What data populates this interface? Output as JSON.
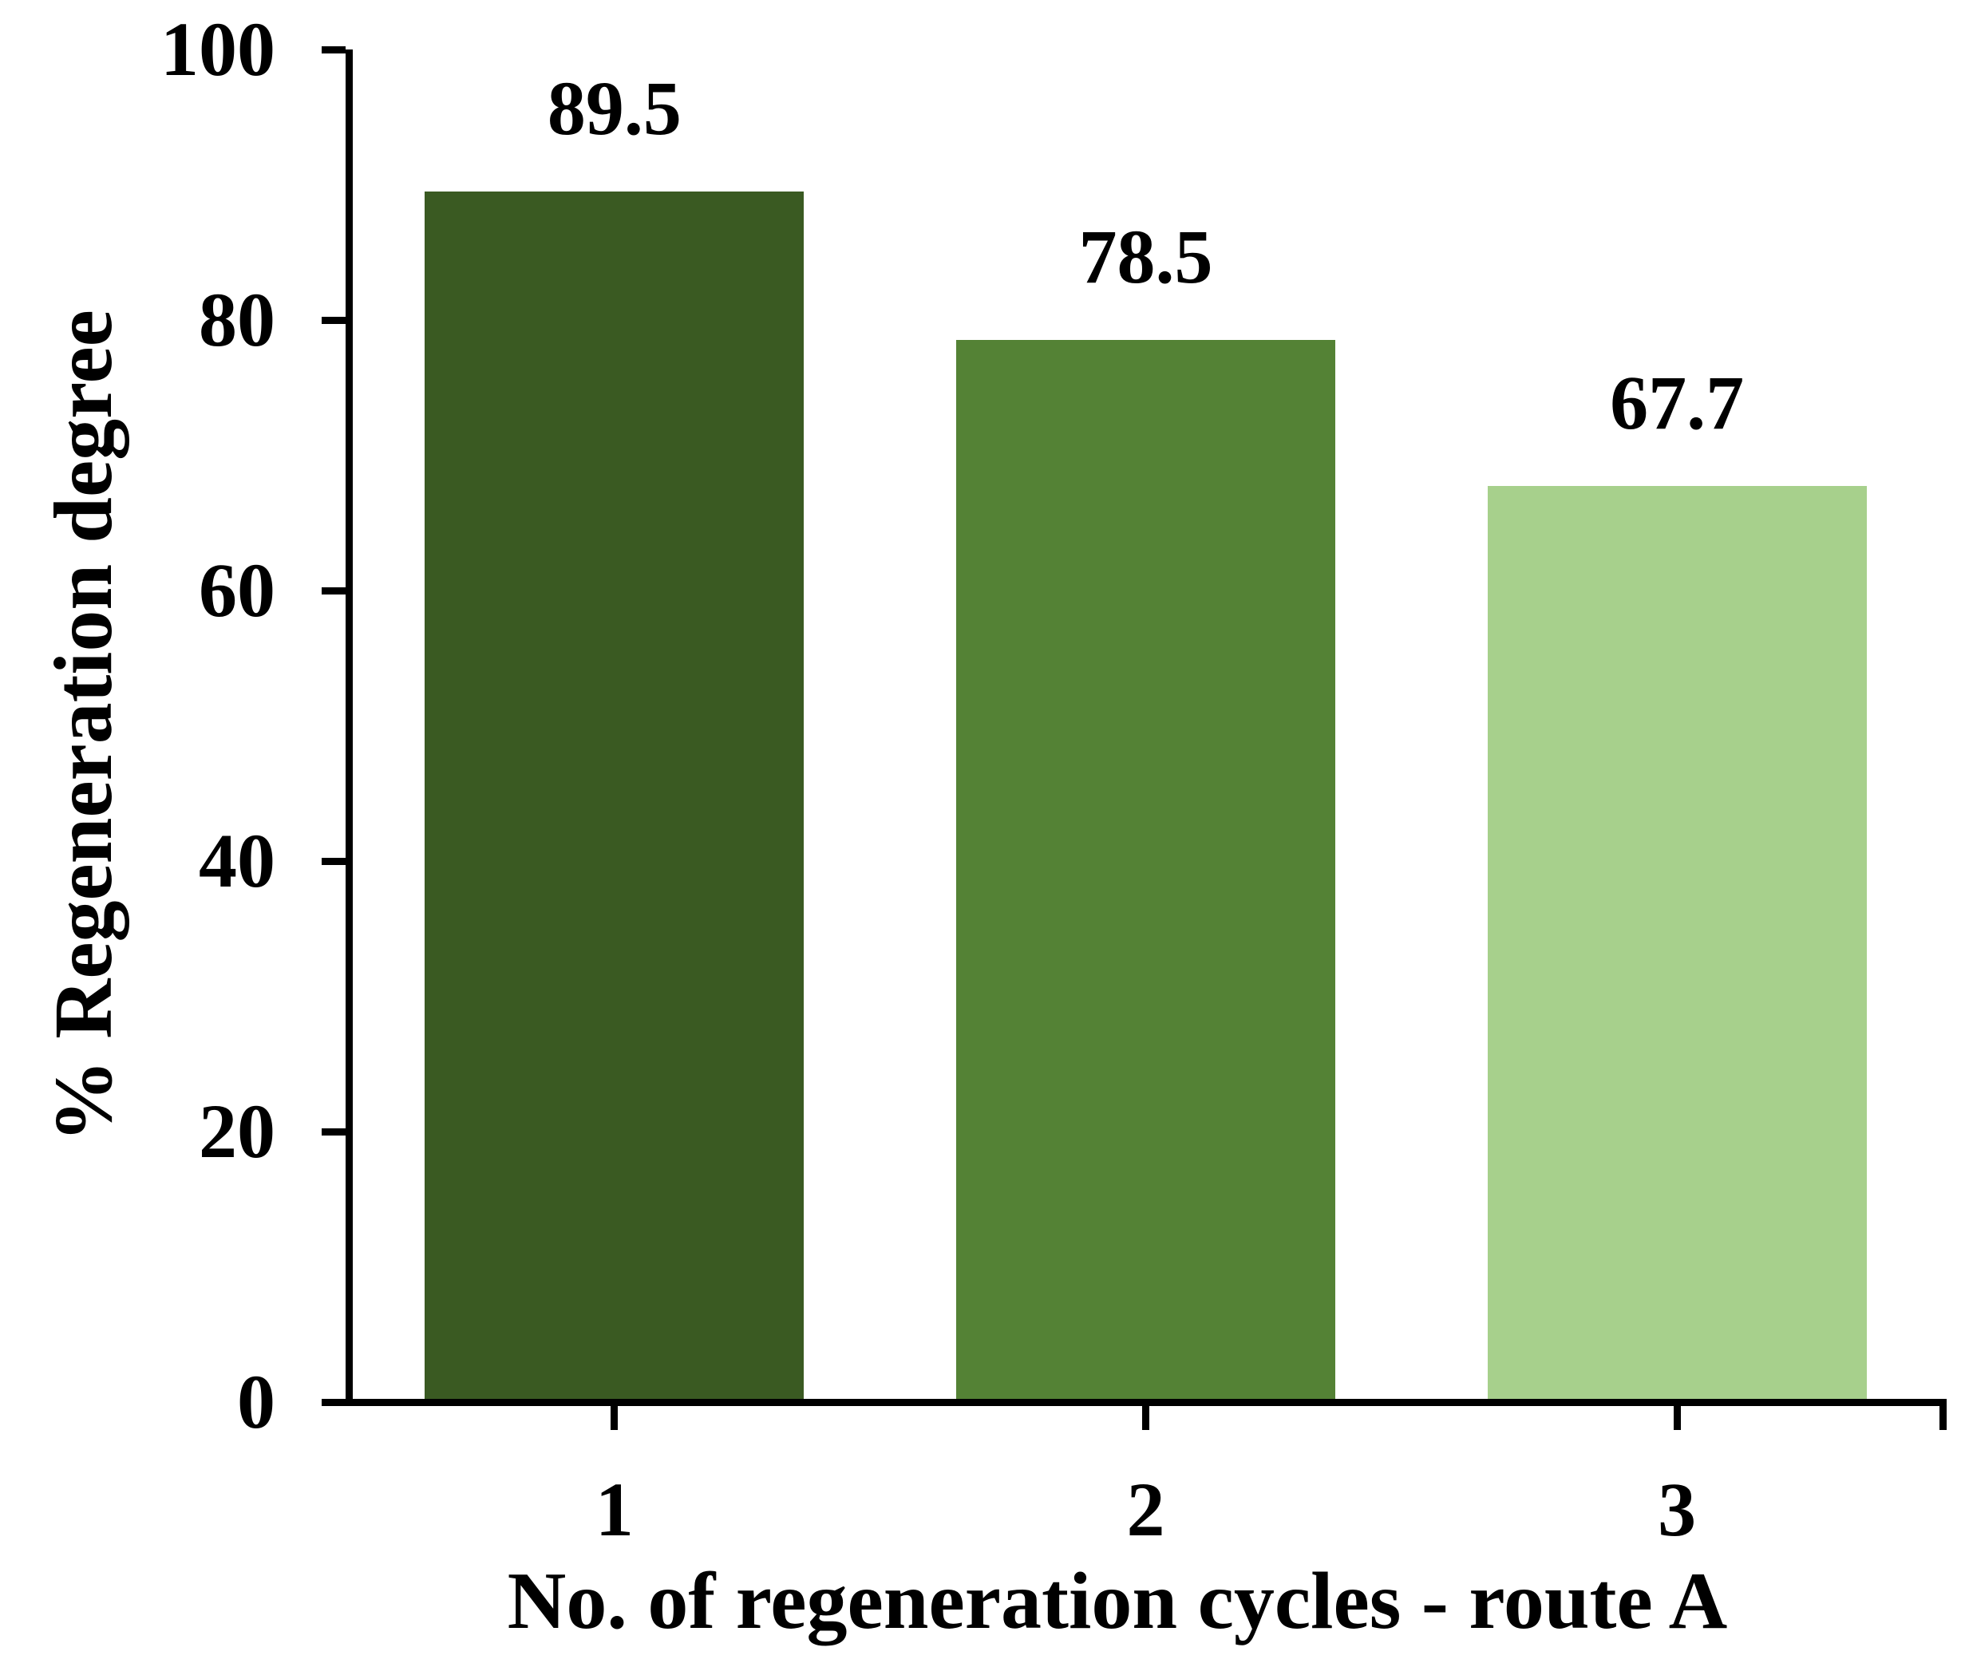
{
  "figure": {
    "background": "#ffffff",
    "axis_color": "#000000",
    "text_color": "#000000"
  },
  "chart_data": {
    "type": "bar",
    "title": "",
    "categories": [
      "1",
      "2",
      "3"
    ],
    "values": [
      89.5,
      78.5,
      67.7
    ],
    "value_labels": [
      "89.5",
      "78.5",
      "67.7"
    ],
    "bar_colors": [
      "#3A5A22",
      "#548235",
      "#A7D08C"
    ],
    "xlabel": "No. of regeneration cycles - route A",
    "ylabel": "% Regeneration degree",
    "ylim": [
      0,
      100
    ],
    "y_ticks": [
      0,
      20,
      40,
      60,
      80,
      100
    ],
    "grid": "off",
    "legend": "none"
  }
}
